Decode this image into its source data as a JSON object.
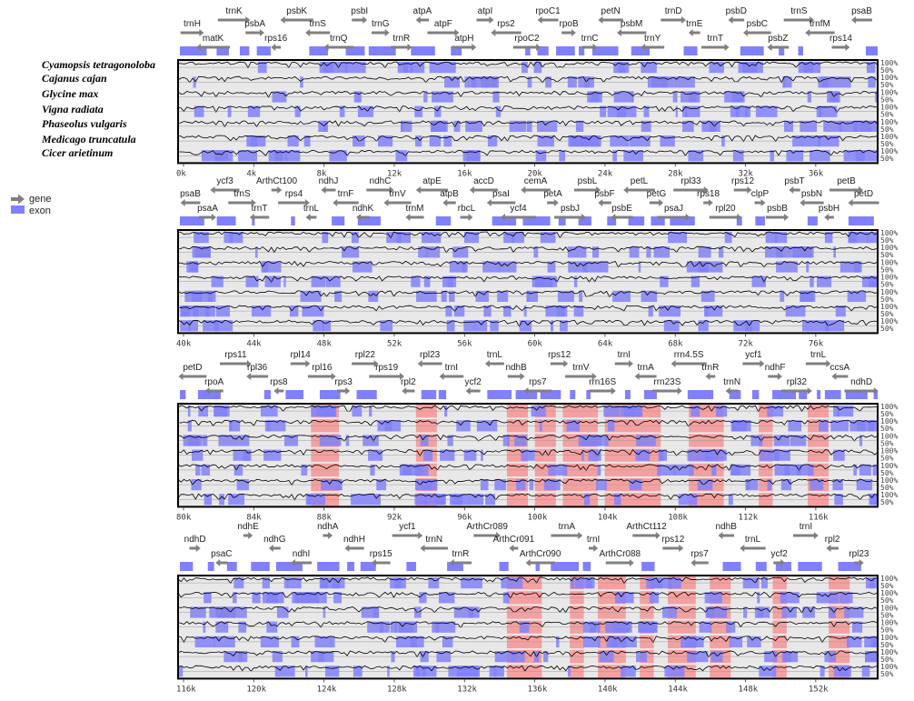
{
  "species": [
    "Cyamopsis tetragonoloba",
    "Cajanus cajan",
    "Glycine max",
    "Vigna radiata",
    "Phaseolus vulgaris",
    "Medicago truncatula",
    "Cicer arietinum"
  ],
  "legend": [
    {
      "label": "gene",
      "color": "#808080"
    },
    {
      "label": "exon",
      "color": "#8080ff"
    }
  ],
  "percent_labels": [
    "100%",
    "50%"
  ],
  "colors": {
    "exon": "#8080ff",
    "cns": "#f5a0a0",
    "bg": "#e8e8e8",
    "gene_arrow": "#808080",
    "frame": "#000000"
  },
  "panels": [
    {
      "ticks": [
        "0k",
        "4k",
        "8k",
        "12k",
        "16k",
        "20k",
        "24k",
        "28k",
        "32k",
        "36k"
      ],
      "genes": [
        "trnH",
        "matK",
        "trnK",
        "psbA",
        "rps16",
        "psbK",
        "trnS",
        "trnQ",
        "psbI",
        "trnG",
        "trnR",
        "atpA",
        "atpF",
        "atpH",
        "atpI",
        "rps2",
        "rpoC2",
        "rpoC1",
        "rpoB",
        "trnC",
        "petN",
        "psbM",
        "trnY",
        "trnD",
        "trnE",
        "trnT",
        "psbD",
        "psbC",
        "psbZ",
        "trnS",
        "trnfM",
        "rps14",
        "psaB"
      ]
    },
    {
      "ticks": [
        "40k",
        "44k",
        "48k",
        "52k",
        "56k",
        "60k",
        "64k",
        "68k",
        "72k",
        "76k"
      ],
      "genes": [
        "psaB",
        "psaA",
        "ycf3",
        "trnS",
        "trnT",
        "ArthCt100",
        "rps4",
        "trnL",
        "ndhJ",
        "trnF",
        "ndhK",
        "ndhC",
        "trnV",
        "trnM",
        "atpE",
        "atpB",
        "rbcL",
        "accD",
        "psaI",
        "ycf4",
        "cemA",
        "petA",
        "psbJ",
        "psbL",
        "psbF",
        "psbE",
        "petL",
        "petG",
        "psaJ",
        "rpl33",
        "rps18",
        "rpl20",
        "rps12",
        "clpP",
        "psbB",
        "psbT",
        "psbN",
        "psbH",
        "petB",
        "petD"
      ]
    },
    {
      "ticks": [
        "80k",
        "84k",
        "88k",
        "92k",
        "96k",
        "100k",
        "104k",
        "108k",
        "112k",
        "116k"
      ],
      "genes": [
        "petD",
        "rpoA",
        "rps11",
        "rpl36",
        "rps8",
        "rpl14",
        "rpl16",
        "rps3",
        "rpl22",
        "rps19",
        "rpl2",
        "rpl23",
        "trnI",
        "ycf2",
        "trnL",
        "ndhB",
        "rps7",
        "rps12",
        "trnV",
        "rrn16S",
        "trnI",
        "trnA",
        "rrn23S",
        "rrn4.5S",
        "trnR",
        "trnN",
        "ycf1",
        "ndhF",
        "rpl32",
        "trnL",
        "ccsA",
        "ndhD"
      ]
    },
    {
      "ticks": [
        "116k",
        "120k",
        "124k",
        "128k",
        "132k",
        "136k",
        "140k",
        "144k",
        "148k",
        "152k"
      ],
      "genes": [
        "ndhD",
        "psaC",
        "ndhE",
        "ndhG",
        "ndhI",
        "ndhA",
        "ndhH",
        "rps15",
        "ycf1",
        "trnN",
        "trnR",
        "ArthCr089",
        "ArthCr091",
        "ArthCr090",
        "trnA",
        "trnI",
        "ArthCr088",
        "ArthCt112",
        "rps12",
        "rps7",
        "ndhB",
        "trnL",
        "ycf2",
        "trnI",
        "rpl2",
        "rpl23"
      ]
    }
  ]
}
